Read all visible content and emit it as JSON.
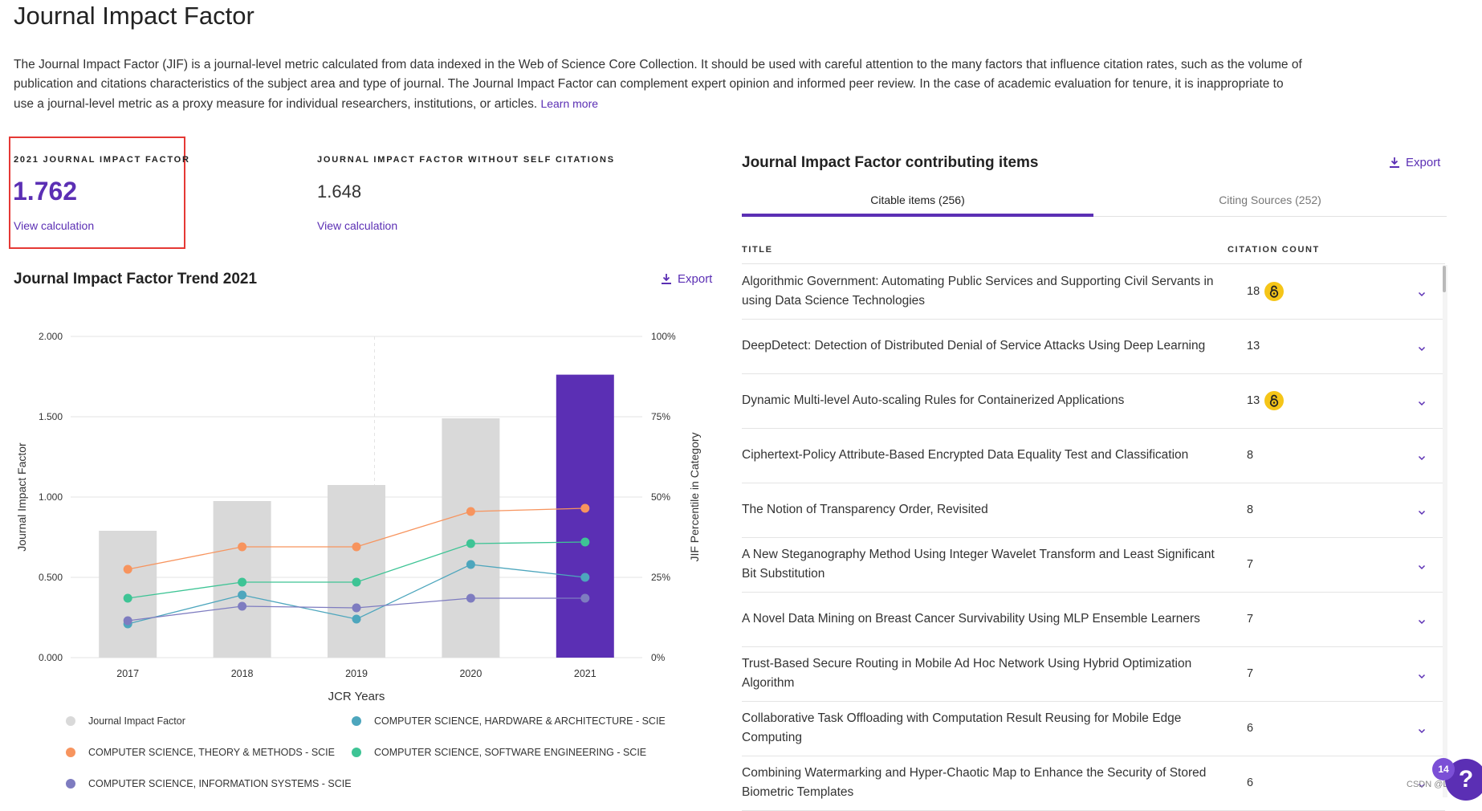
{
  "page": {
    "title": "Journal Impact Factor",
    "description": "The Journal Impact Factor (JIF) is a journal-level metric calculated from data indexed in the Web of Science Core Collection. It should be used with careful attention to the many factors that influence citation rates, such as the volume of publication and citations characteristics of the subject area and type of journal. The Journal Impact Factor can complement expert opinion and informed peer review. In the case of academic evaluation for tenure, it is inappropriate to use a journal-level metric as a proxy measure for individual researchers, institutions, or articles.",
    "learn_more": "Learn more"
  },
  "metrics": {
    "jif": {
      "label": "2021 JOURNAL IMPACT FACTOR",
      "value": "1.762",
      "link": "View calculation"
    },
    "jif_no_self": {
      "label": "JOURNAL IMPACT FACTOR WITHOUT SELF CITATIONS",
      "value": "1.648",
      "link": "View calculation"
    }
  },
  "trend": {
    "title": "Journal Impact Factor Trend 2021",
    "export": "Export"
  },
  "chart_data": {
    "type": "bar",
    "title": "Journal Impact Factor Trend 2021",
    "xlabel": "JCR Years",
    "ylabel": "Journal Impact Factor",
    "y2label": "JIF Percentile in Category",
    "ylim": [
      0,
      2
    ],
    "y2lim": [
      0,
      100
    ],
    "yticks": [
      "0.000",
      "0.500",
      "1.000",
      "1.500",
      "2.000"
    ],
    "y2ticks": [
      "0%",
      "25%",
      "50%",
      "75%",
      "100%"
    ],
    "categories": [
      "2017",
      "2018",
      "2019",
      "2020",
      "2021"
    ],
    "bars": {
      "name": "Journal Impact Factor",
      "values": [
        0.79,
        0.975,
        1.075,
        1.49,
        1.762
      ],
      "color": "#d9d9d9",
      "highlight_color": "#5b2fb4"
    },
    "series": [
      {
        "name": "COMPUTER SCIENCE, HARDWARE & ARCHITECTURE - SCIE",
        "color": "#4da6bd",
        "values": [
          10.5,
          19.5,
          12,
          29,
          25
        ]
      },
      {
        "name": "COMPUTER SCIENCE, THEORY & METHODS - SCIE",
        "color": "#f7945e",
        "values": [
          27.5,
          34.5,
          34.5,
          45.5,
          46.5
        ]
      },
      {
        "name": "COMPUTER SCIENCE, SOFTWARE ENGINEERING - SCIE",
        "color": "#3ec495",
        "values": [
          18.5,
          23.5,
          23.5,
          35.5,
          36
        ]
      },
      {
        "name": "COMPUTER SCIENCE, INFORMATION SYSTEMS - SCIE",
        "color": "#7e7cc0",
        "values": [
          11.5,
          16,
          15.5,
          18.5,
          18.5
        ]
      }
    ]
  },
  "contrib": {
    "title": "Journal Impact Factor contributing items",
    "export": "Export",
    "tabs": [
      "Citable items (256)",
      "Citing Sources (252)"
    ],
    "col_title": "TITLE",
    "col_count": "CITATION COUNT",
    "rows": [
      {
        "title": "Algorithmic Government: Automating Public Services and Supporting Civil Servants in using Data Science Technologies",
        "count": "18",
        "oa": true
      },
      {
        "title": "DeepDetect: Detection of Distributed Denial of Service Attacks Using Deep Learning",
        "count": "13",
        "oa": false
      },
      {
        "title": "Dynamic Multi-level Auto-scaling Rules for Containerized Applications",
        "count": "13",
        "oa": true
      },
      {
        "title": "Ciphertext-Policy Attribute-Based Encrypted Data Equality Test and Classification",
        "count": "8",
        "oa": false
      },
      {
        "title": "The Notion of Transparency Order, Revisited",
        "count": "8",
        "oa": false
      },
      {
        "title": "A New Steganography Method Using Integer Wavelet Transform and Least Significant Bit Substitution",
        "count": "7",
        "oa": false
      },
      {
        "title": "A Novel Data Mining on Breast Cancer Survivability Using MLP Ensemble Learners",
        "count": "7",
        "oa": false
      },
      {
        "title": "Trust-Based Secure Routing in Mobile Ad Hoc Network Using Hybrid Optimization Algorithm",
        "count": "7",
        "oa": false
      },
      {
        "title": "Collaborative Task Offloading with Computation Result Reusing for Mobile Edge Computing",
        "count": "6",
        "oa": false
      },
      {
        "title": "Combining Watermarking and Hyper-Chaotic Map to Enhance the Security of Stored Biometric Templates",
        "count": "6",
        "oa": false
      }
    ]
  },
  "help": {
    "count": "14",
    "icon": "?"
  },
  "watermark": "CSDN @Dhaho"
}
